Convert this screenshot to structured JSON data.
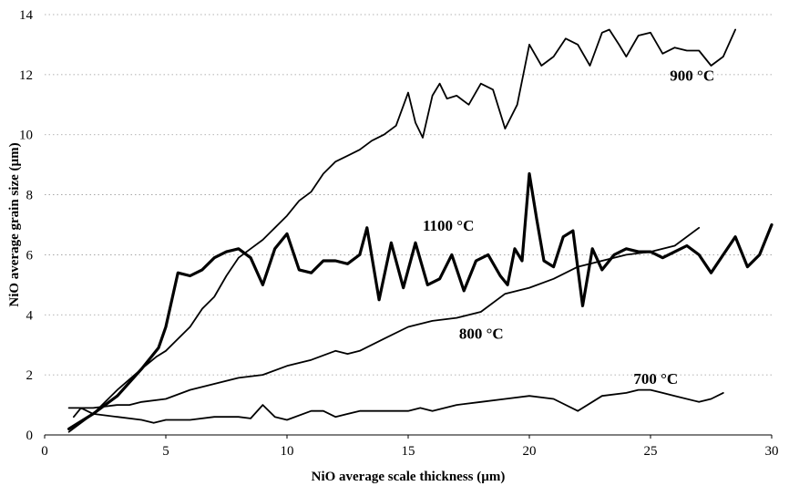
{
  "chart_data": {
    "type": "line",
    "title": "",
    "xlabel": "NiO average scale thickness (µm)",
    "ylabel": "NiO average grain size (µm)",
    "xlim": [
      0,
      30
    ],
    "ylim": [
      0,
      14
    ],
    "xticks": [
      "0",
      "5",
      "10",
      "15",
      "20",
      "25",
      "30"
    ],
    "yticks": [
      "0",
      "2",
      "4",
      "6",
      "8",
      "10",
      "12",
      "14"
    ],
    "grid": "horizontal dotted",
    "legend": "none (inline series labels)",
    "series": [
      {
        "name": "900 °C",
        "label_at": [
          25.8,
          11.8
        ],
        "stroke_width": 1.8,
        "x": [
          1.0,
          2.0,
          3.0,
          4.0,
          4.6,
          5.0,
          5.5,
          6.0,
          6.5,
          7.0,
          7.5,
          8.0,
          8.5,
          9.0,
          9.5,
          10.0,
          10.5,
          11.0,
          11.5,
          12.0,
          12.5,
          13.0,
          13.5,
          14.0,
          14.5,
          15.0,
          15.3,
          15.6,
          16.0,
          16.3,
          16.6,
          17.0,
          17.5,
          18.0,
          18.5,
          19.0,
          19.5,
          20.0,
          20.5,
          21.0,
          21.5,
          22.0,
          22.5,
          23.0,
          23.3,
          23.7,
          24.0,
          24.5,
          25.0,
          25.5,
          26.0,
          26.5,
          27.0,
          27.5,
          28.0,
          28.5
        ],
        "y": [
          0.1,
          0.7,
          1.5,
          2.2,
          2.6,
          2.8,
          3.2,
          3.6,
          4.2,
          4.6,
          5.3,
          5.9,
          6.2,
          6.5,
          6.9,
          7.3,
          7.8,
          8.1,
          8.7,
          9.1,
          9.3,
          9.5,
          9.8,
          10.0,
          10.3,
          11.4,
          10.4,
          9.9,
          11.3,
          11.7,
          11.2,
          11.3,
          11.0,
          11.7,
          11.5,
          10.2,
          11.0,
          13.0,
          12.3,
          12.6,
          13.2,
          13.0,
          12.3,
          13.4,
          13.5,
          13.0,
          12.6,
          13.3,
          13.4,
          12.7,
          12.9,
          12.8,
          12.8,
          12.3,
          12.6,
          13.5
        ]
      },
      {
        "name": "1100 °C",
        "label_at": [
          15.6,
          6.8
        ],
        "stroke_width": 3.2,
        "x": [
          1.0,
          2.0,
          3.0,
          4.0,
          4.7,
          5.0,
          5.5,
          6.0,
          6.5,
          7.0,
          7.5,
          8.0,
          8.5,
          9.0,
          9.5,
          10.0,
          10.5,
          11.0,
          11.5,
          12.0,
          12.5,
          13.0,
          13.3,
          13.8,
          14.3,
          14.8,
          15.3,
          15.8,
          16.3,
          16.8,
          17.3,
          17.8,
          18.3,
          18.8,
          19.1,
          19.4,
          19.7,
          20.0,
          20.3,
          20.6,
          21.0,
          21.4,
          21.8,
          22.2,
          22.6,
          23.0,
          23.5,
          24.0,
          24.5,
          25.0,
          25.5,
          26.0,
          26.5,
          27.0,
          27.5,
          28.0,
          28.5,
          29.0,
          29.5,
          30.0
        ],
        "y": [
          0.2,
          0.7,
          1.3,
          2.2,
          2.9,
          3.6,
          5.4,
          5.3,
          5.5,
          5.9,
          6.1,
          6.2,
          5.9,
          5.0,
          6.2,
          6.7,
          5.5,
          5.4,
          5.8,
          5.8,
          5.7,
          6.0,
          6.9,
          4.5,
          6.4,
          4.9,
          6.4,
          5.0,
          5.2,
          6.0,
          4.8,
          5.8,
          6.0,
          5.3,
          5.0,
          6.2,
          5.8,
          8.7,
          7.2,
          5.8,
          5.6,
          6.6,
          6.8,
          4.3,
          6.2,
          5.5,
          6.0,
          6.2,
          6.1,
          6.1,
          5.9,
          6.1,
          6.3,
          6.0,
          5.4,
          6.0,
          6.6,
          5.6,
          6.0,
          7.0
        ]
      },
      {
        "name": "800 °C",
        "label_at": [
          17.1,
          3.2
        ],
        "stroke_width": 1.8,
        "x": [
          1.0,
          2.0,
          3.0,
          3.5,
          4.0,
          5.0,
          6.0,
          7.0,
          8.0,
          9.0,
          10.0,
          11.0,
          12.0,
          12.5,
          13.0,
          14.0,
          15.0,
          16.0,
          17.0,
          18.0,
          19.0,
          20.0,
          21.0,
          22.0,
          23.0,
          24.0,
          25.0,
          26.0,
          27.0
        ],
        "y": [
          0.9,
          0.9,
          1.0,
          1.0,
          1.1,
          1.2,
          1.5,
          1.7,
          1.9,
          2.0,
          2.3,
          2.5,
          2.8,
          2.7,
          2.8,
          3.2,
          3.6,
          3.8,
          3.9,
          4.1,
          4.7,
          4.9,
          5.2,
          5.6,
          5.8,
          6.0,
          6.1,
          6.3,
          6.9
        ]
      },
      {
        "name": "700 °C",
        "label_at": [
          24.3,
          1.7
        ],
        "stroke_width": 1.8,
        "x": [
          1.2,
          1.5,
          2.0,
          3.0,
          4.0,
          4.5,
          5.0,
          6.0,
          7.0,
          8.0,
          8.5,
          9.0,
          9.5,
          10.0,
          11.0,
          11.5,
          12.0,
          13.0,
          14.0,
          15.0,
          15.5,
          16.0,
          17.0,
          18.0,
          19.0,
          20.0,
          21.0,
          22.0,
          23.0,
          24.0,
          24.5,
          25.0,
          25.5,
          26.0,
          27.0,
          27.5,
          28.0
        ],
        "y": [
          0.6,
          0.9,
          0.7,
          0.6,
          0.5,
          0.4,
          0.5,
          0.5,
          0.6,
          0.6,
          0.55,
          1.0,
          0.6,
          0.5,
          0.8,
          0.8,
          0.6,
          0.8,
          0.8,
          0.8,
          0.9,
          0.8,
          1.0,
          1.1,
          1.2,
          1.3,
          1.2,
          0.8,
          1.3,
          1.4,
          1.5,
          1.5,
          1.4,
          1.3,
          1.1,
          1.2,
          1.4
        ]
      }
    ]
  }
}
